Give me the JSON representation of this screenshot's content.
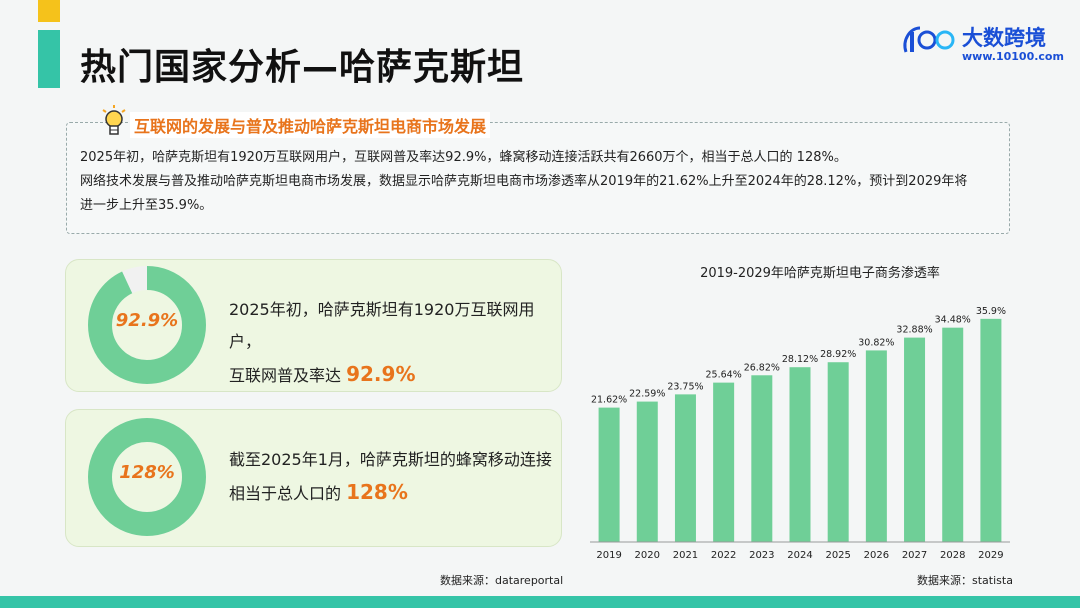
{
  "header": {
    "title": "热门国家分析—哈萨克斯坦",
    "logo_name": "大数跨境",
    "logo_url": "www.10100.com"
  },
  "info": {
    "heading": "互联网的发展与普及推动哈萨克斯坦电商市场发展",
    "line1": "2025年初，哈萨克斯坦有1920万互联网用户，互联网普及率达92.9%，蜂窝移动连接活跃共有2660万个，相当于总人口的 128%。",
    "line2": "网络技术发展与普及推动哈萨克斯坦电商市场发展，数据显示哈萨克斯坦电商市场渗透率从2019年的21.62%上升至2024年的28.12%，预计到2029年将",
    "line3": "进一步上升至35.9%。"
  },
  "cards": [
    {
      "donut_label": "92.9%",
      "fill_fraction": 0.929,
      "text_line1": "2025年初，哈萨克斯坦有1920万互联网用户，",
      "text_line2_prefix": "互联网普及率达 ",
      "highlight": "92.9%"
    },
    {
      "donut_label": "128%",
      "fill_fraction": 1.0,
      "text_line1": "截至2025年1月，哈萨克斯坦的蜂窝移动连接",
      "text_line2_prefix": "相当于总人口的 ",
      "highlight": "128%"
    }
  ],
  "sources": {
    "left": "数据来源：datareportal",
    "right": "数据来源：statista"
  },
  "colors": {
    "accent_green": "#6fcf97",
    "accent_orange": "#e8741c",
    "donut_track": "#f1f1f1"
  },
  "chart_data": {
    "type": "bar",
    "title": "2019-2029年哈萨克斯坦电子商务渗透率",
    "categories": [
      "2019",
      "2020",
      "2021",
      "2022",
      "2023",
      "2024",
      "2025",
      "2026",
      "2027",
      "2028",
      "2029"
    ],
    "values": [
      21.62,
      22.59,
      23.75,
      25.64,
      26.82,
      28.12,
      28.92,
      30.82,
      32.88,
      34.48,
      35.9
    ],
    "data_labels": [
      "21.62%",
      "22.59%",
      "23.75%",
      "25.64%",
      "26.82%",
      "28.12%",
      "28.92%",
      "30.82%",
      "32.88%",
      "34.48%",
      "35.9%"
    ],
    "ylim": [
      0,
      37
    ],
    "grid": false,
    "legend": "none"
  }
}
